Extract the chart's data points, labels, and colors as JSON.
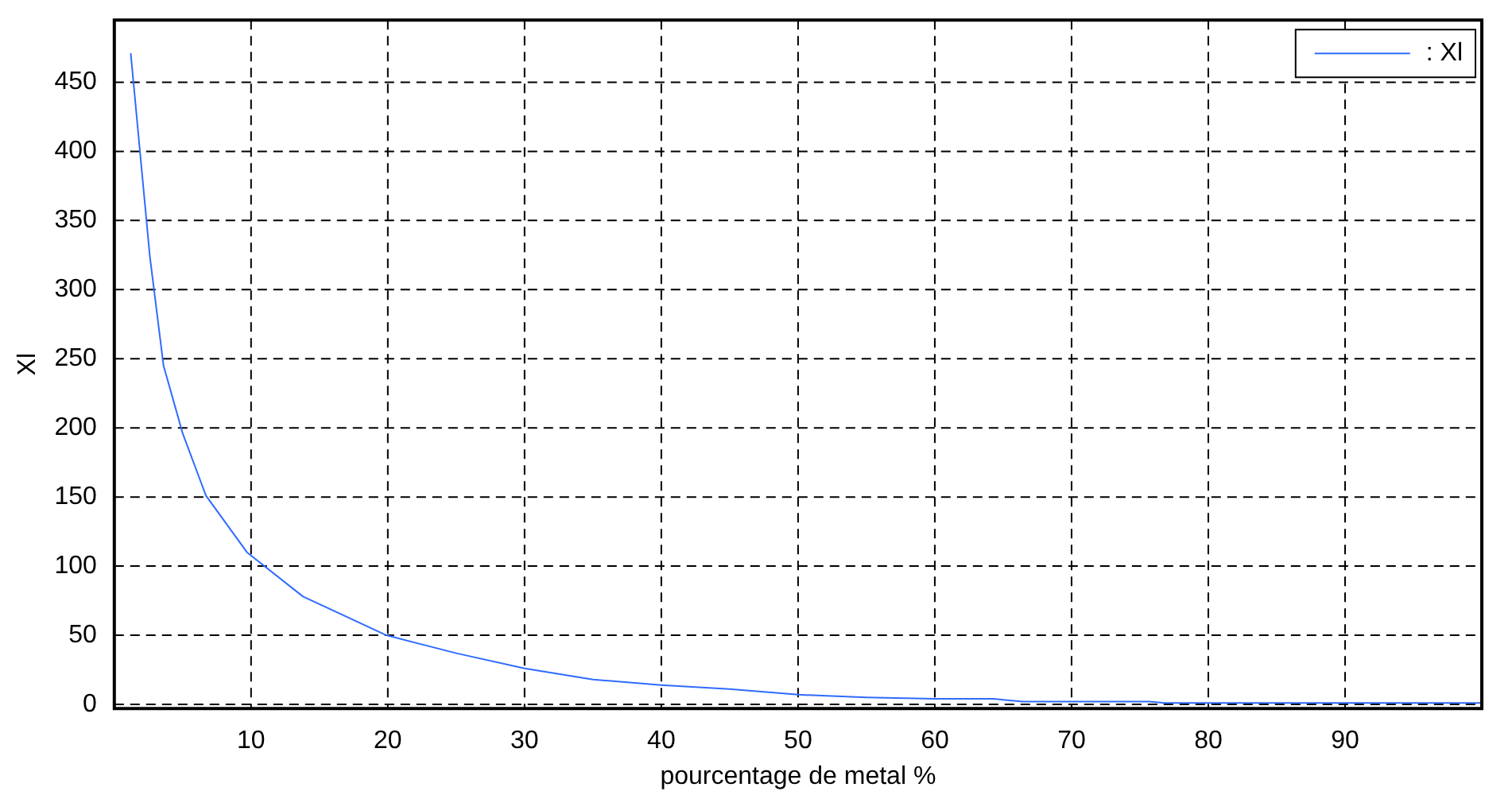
{
  "chart_data": {
    "type": "line",
    "xlabel": "pourcentage de metal %",
    "ylabel": "Xl",
    "series": [
      {
        "name": ": Xl",
        "color": "#2f6bff",
        "x": [
          1.2,
          2.6,
          3.6,
          5,
          6.7,
          9.7,
          13.8,
          19.9,
          25,
          30,
          35,
          40,
          45,
          50,
          55,
          60,
          64.3,
          66.4,
          70,
          75.7,
          76.8,
          85,
          100
        ],
        "values": [
          471,
          324,
          245,
          196,
          151,
          110,
          78,
          50,
          37,
          26,
          18,
          14,
          11,
          7,
          5,
          4,
          4,
          2,
          2,
          2,
          1,
          1,
          1
        ]
      }
    ],
    "xlim": [
      0,
      100
    ],
    "xticks": [
      {
        "value": 0,
        "label": null
      },
      10,
      20,
      30,
      40,
      50,
      60,
      70,
      80,
      90
    ],
    "ylim": [
      -3,
      495
    ],
    "yticks": [
      0,
      50,
      100,
      150,
      200,
      250,
      300,
      350,
      400,
      450
    ],
    "grid": true,
    "legend": "top right",
    "marker": "none",
    "line_style": "solid"
  }
}
